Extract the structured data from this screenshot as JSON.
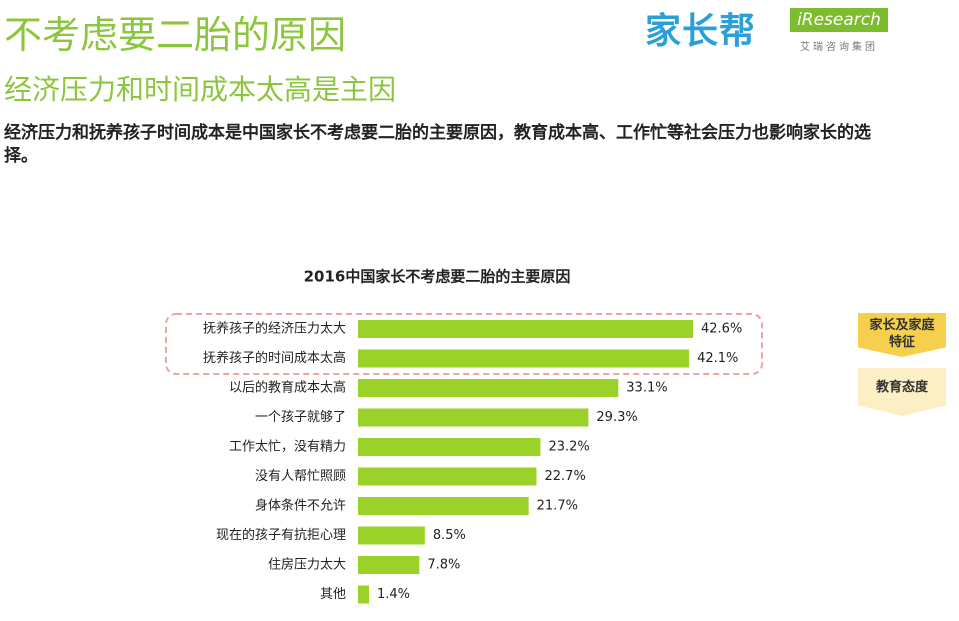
{
  "header": {
    "title": "不考虑要二胎的原因",
    "subtitle": "经济压力和时间成本太高是主因",
    "description": "经济压力和抚养孩子时间成本是中国家长不考虑要二胎的主要原因，教育成本高、工作忙等社会压力也影响家长的选择。"
  },
  "logo": {
    "brand": "家长帮",
    "partner": "iResearch",
    "partner_sub": "艾瑞咨询集团"
  },
  "tags": [
    "家长及家庭特征",
    "教育态度"
  ],
  "chart_data": {
    "type": "bar",
    "orientation": "horizontal",
    "title": "2016中国家长不考虑要二胎的主要原因",
    "categories": [
      "抚养孩子的经济压力太大",
      "抚养孩子的时间成本太高",
      "以后的教育成本太高",
      "一个孩子就够了",
      "工作太忙，没有精力",
      "没有人帮忙照顾",
      "身体条件不允许",
      "现在的孩子有抗拒心理",
      "住房压力太大",
      "其他"
    ],
    "values": [
      42.6,
      42.1,
      33.1,
      29.3,
      23.2,
      22.7,
      21.7,
      8.5,
      7.8,
      1.4
    ],
    "value_labels": [
      "42.6%",
      "42.1%",
      "33.1%",
      "29.3%",
      "23.2%",
      "22.7%",
      "21.7%",
      "8.5%",
      "7.8%",
      "1.4%"
    ],
    "color": "#9bd22a"
  }
}
